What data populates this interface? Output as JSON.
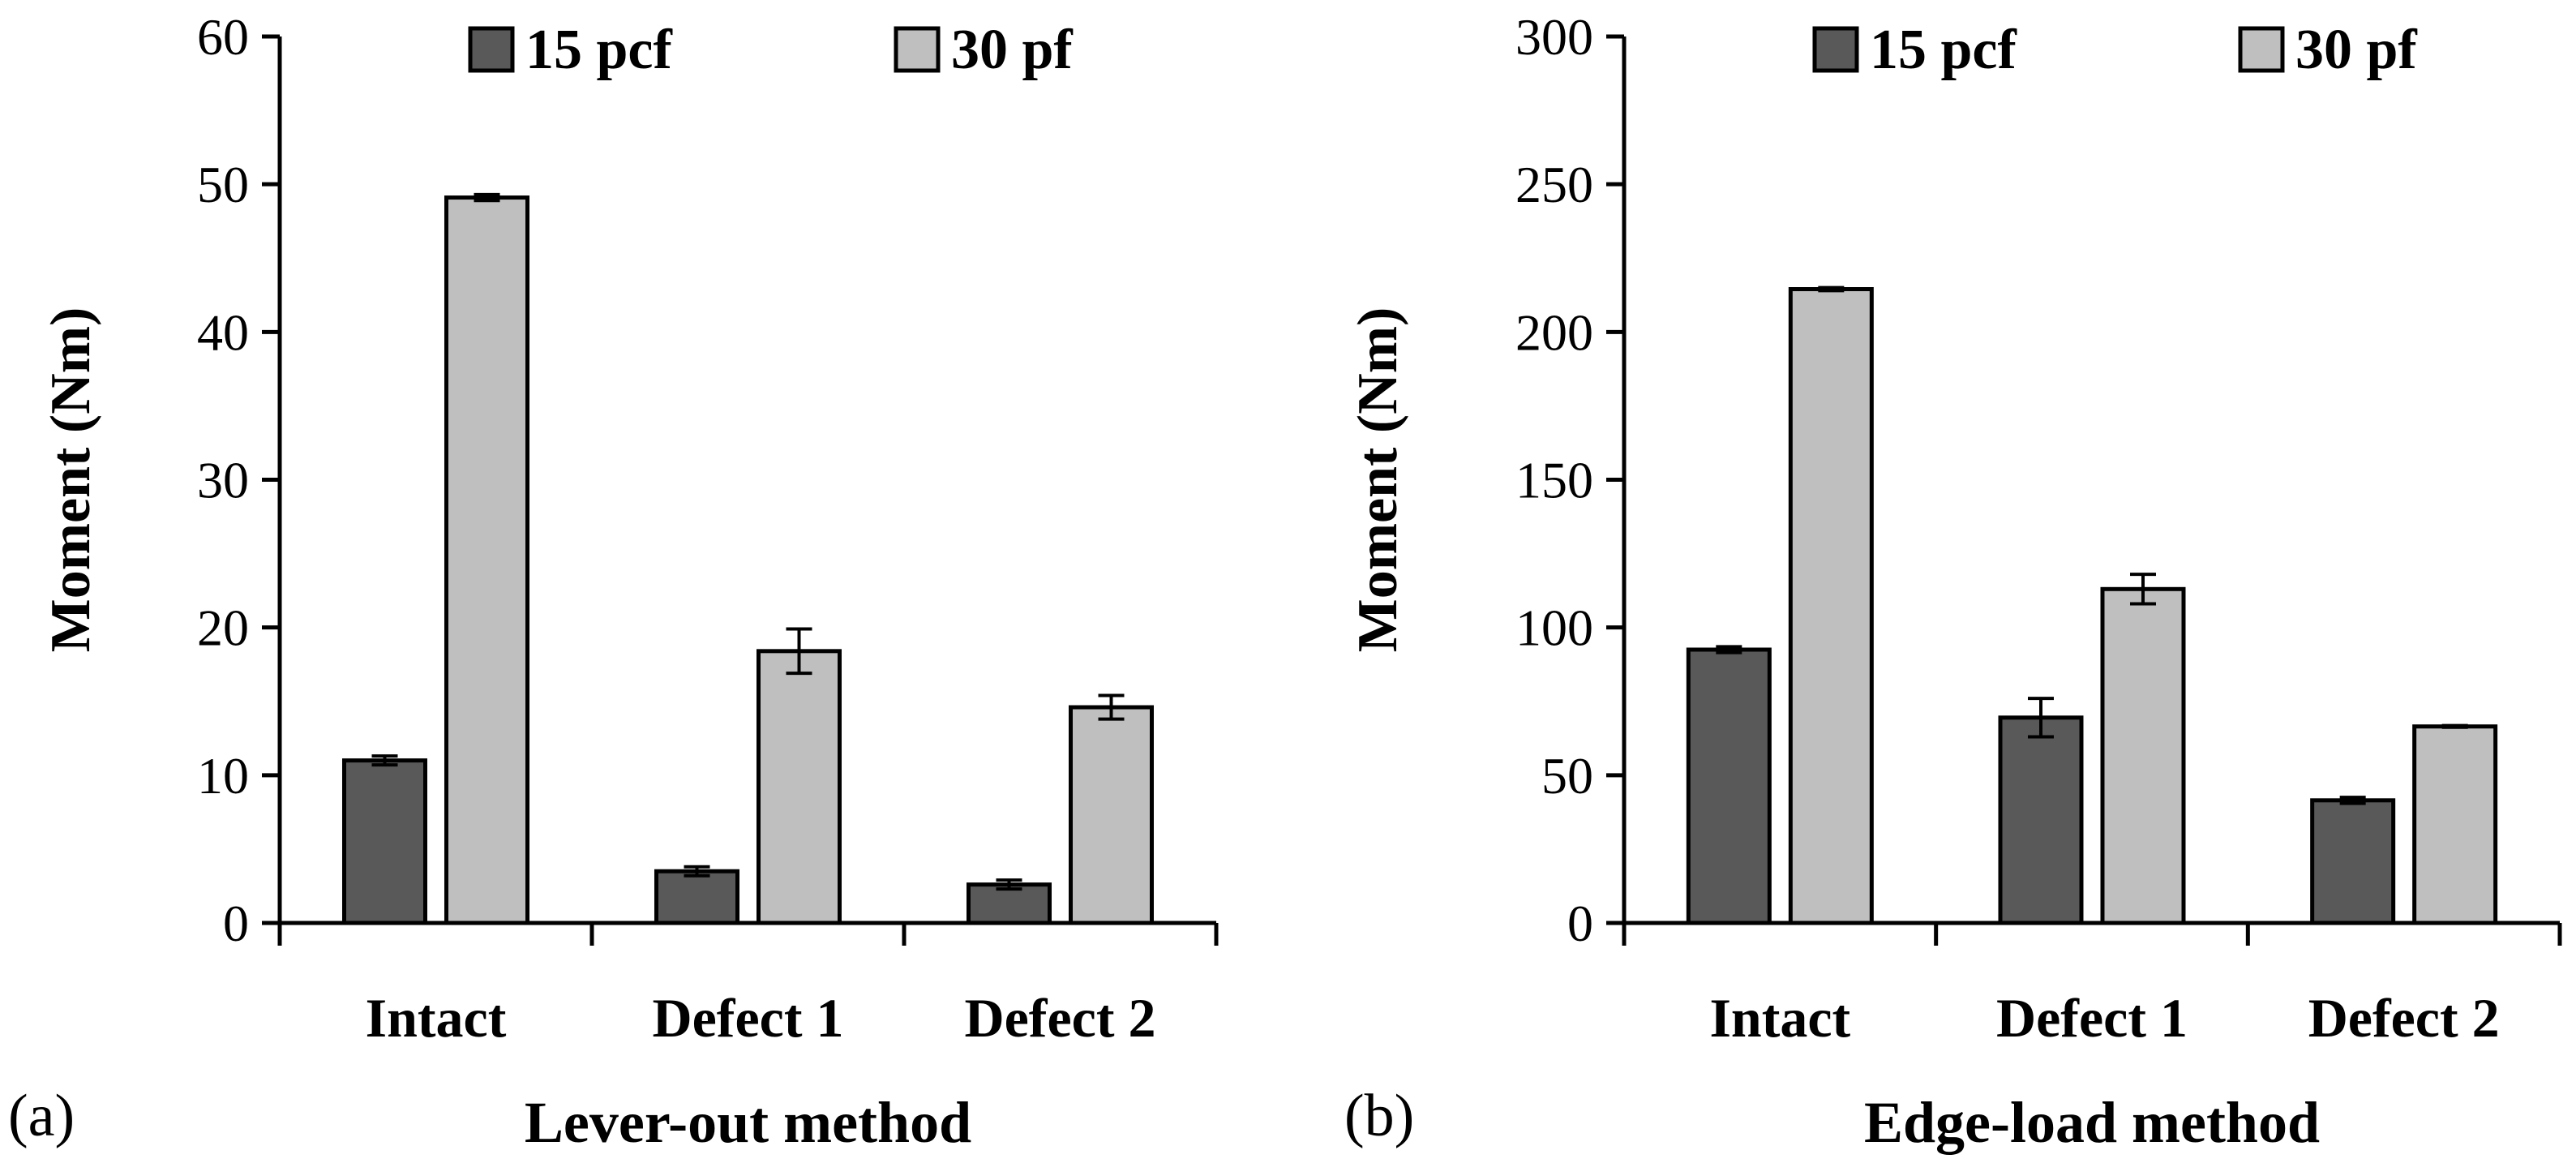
{
  "chart_data": [
    {
      "type": "bar",
      "panel_label": "(a)",
      "categories": [
        "Intact",
        "Defect 1",
        "Defect 2"
      ],
      "series": [
        {
          "name": "15 pcf",
          "values": [
            11.0,
            3.5,
            2.6
          ],
          "errors": [
            0.3,
            0.3,
            0.3
          ]
        },
        {
          "name": "30 pf",
          "values": [
            49.1,
            18.4,
            14.6
          ],
          "errors": [
            0.2,
            1.5,
            0.8
          ]
        }
      ],
      "xlabel": "Lever-out method",
      "ylabel": "Moment (Nm)",
      "ylim": [
        0,
        60
      ],
      "yticks": [
        0,
        10,
        20,
        30,
        40,
        50,
        60
      ],
      "grid": false,
      "legend": "top"
    },
    {
      "type": "bar",
      "panel_label": "(b)",
      "categories": [
        "Intact",
        "Defect 1",
        "Defect 2"
      ],
      "series": [
        {
          "name": "15 pcf",
          "values": [
            92.5,
            69.5,
            41.5
          ],
          "errors": [
            1.0,
            6.5,
            1.0
          ]
        },
        {
          "name": "30 pf",
          "values": [
            214.5,
            113.0,
            66.5
          ],
          "errors": [
            0.5,
            5.0,
            0.3
          ]
        }
      ],
      "xlabel": "Edge-load method",
      "ylabel": "Moment (Nm)",
      "ylim": [
        0,
        300
      ],
      "yticks": [
        0,
        50,
        100,
        150,
        200,
        250,
        300
      ],
      "grid": false,
      "legend": "top"
    }
  ],
  "colors": {
    "series_dark": "#595959",
    "series_light": "#bfbfbf",
    "axis": "#000000"
  }
}
